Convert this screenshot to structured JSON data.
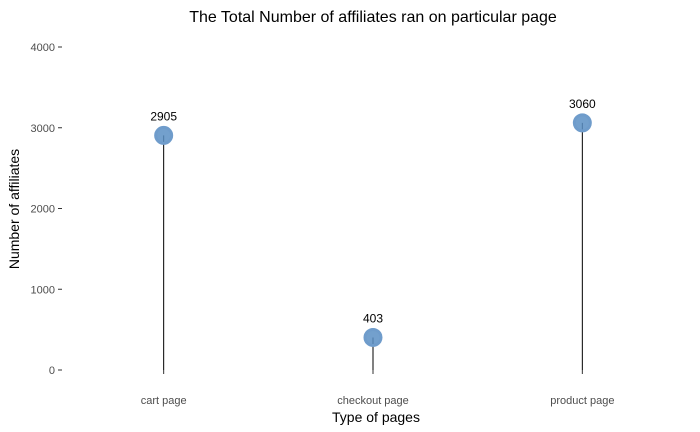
{
  "chart_data": {
    "type": "lollipop",
    "title": "The Total Number of affiliates ran on particular page",
    "xlabel": "Type of pages",
    "ylabel": "Number of affiliates",
    "categories": [
      "cart page",
      "checkout page",
      "product page"
    ],
    "values": [
      2905,
      403,
      3060
    ],
    "data_labels": [
      "2905",
      "403",
      "3060"
    ],
    "ylim": [
      0,
      4000
    ],
    "yticks": [
      0,
      1000,
      2000,
      3000,
      4000
    ],
    "grid": false,
    "point_color": "#5b8fc4",
    "stem_color": "#000000"
  }
}
